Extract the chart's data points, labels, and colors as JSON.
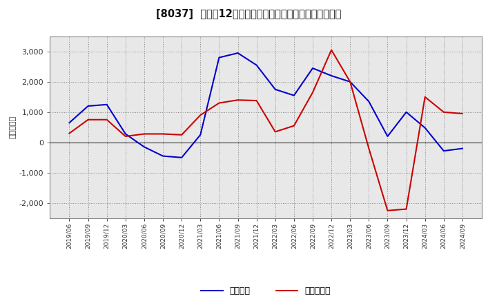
{
  "title": "[8037]  利益だ12か月移動合計の対前年同期増減額の推移",
  "ylabel": "（百万円）",
  "background_color": "#ffffff",
  "plot_bg_color": "#e8e8e8",
  "grid_color": "#aaaaaa",
  "dates": [
    "2019/06",
    "2019/09",
    "2019/12",
    "2020/03",
    "2020/06",
    "2020/09",
    "2020/12",
    "2021/03",
    "2021/06",
    "2021/09",
    "2021/12",
    "2022/03",
    "2022/06",
    "2022/09",
    "2022/12",
    "2023/03",
    "2023/06",
    "2023/09",
    "2023/12",
    "2024/03",
    "2024/06",
    "2024/09"
  ],
  "keijo_rieki": [
    650,
    1200,
    1250,
    280,
    -150,
    -450,
    -500,
    250,
    2800,
    2950,
    2550,
    1750,
    1550,
    2450,
    2200,
    2000,
    1350,
    200,
    1000,
    480,
    -280,
    -200
  ],
  "junrieki": [
    300,
    750,
    750,
    200,
    280,
    280,
    250,
    900,
    1300,
    1400,
    1380,
    350,
    550,
    1650,
    3050,
    2000,
    -200,
    -2250,
    -2200,
    1500,
    1000,
    950
  ],
  "line_color_keijo": "#0000cc",
  "line_color_jun": "#cc0000",
  "ylim": [
    -2500,
    3500
  ],
  "yticks": [
    -2000,
    -1000,
    0,
    1000,
    2000,
    3000
  ],
  "legend_keijo": "経常利益",
  "legend_jun": "当期純利益"
}
